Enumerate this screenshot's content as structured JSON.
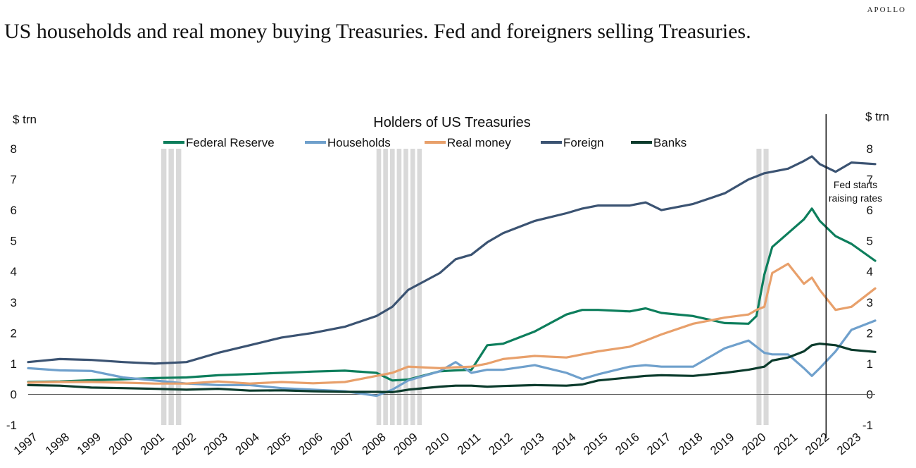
{
  "brand": "APOLLO",
  "headline": "US households and real money buying Treasuries. Fed and foreigners selling Treasuries.",
  "colors": {
    "federal_reserve": "#0d7e5c",
    "households": "#6fa0cc",
    "real_money": "#e8a06b",
    "foreign": "#3b5372",
    "banks": "#0b3b2c",
    "recession": "#d9d9d9"
  },
  "chart_data": {
    "type": "line",
    "title": "Holders of US Treasuries",
    "ylabel_left": "$ trn",
    "ylabel_right": "$ trn",
    "ylim": [
      -1,
      8
    ],
    "yticks": [
      -1,
      0,
      1,
      2,
      3,
      4,
      5,
      6,
      7,
      8
    ],
    "xlim": [
      1997,
      2023.75
    ],
    "xticks": [
      "1997",
      "1998",
      "1999",
      "2000",
      "2001",
      "2002",
      "2003",
      "2004",
      "2005",
      "2006",
      "2007",
      "2008",
      "2009",
      "2010",
      "2011",
      "2012",
      "2013",
      "2014",
      "2015",
      "2016",
      "2017",
      "2018",
      "2019",
      "2020",
      "2021",
      "2022",
      "2023"
    ],
    "grid": false,
    "legend": "top",
    "recessions": [
      [
        2001.2,
        2001.9
      ],
      [
        2008.0,
        2009.5
      ],
      [
        2020.0,
        2020.45
      ]
    ],
    "vline": {
      "x": 2022.2,
      "label_line1": "Fed starts",
      "label_line2": "raising rates"
    },
    "x": [
      1997,
      1998,
      1999,
      2000,
      2001,
      2002,
      2003,
      2004,
      2005,
      2006,
      2007,
      2008,
      2008.5,
      2009,
      2010,
      2010.5,
      2011,
      2011.5,
      2012,
      2013,
      2014,
      2014.5,
      2015,
      2016,
      2016.5,
      2017,
      2018,
      2019,
      2019.75,
      2020,
      2020.25,
      2020.5,
      2021,
      2021.5,
      2021.75,
      2022,
      2022.5,
      2023,
      2023.75
    ],
    "series": [
      {
        "name": "Federal Reserve",
        "color_key": "federal_reserve",
        "values": [
          0.4,
          0.42,
          0.46,
          0.49,
          0.53,
          0.55,
          0.62,
          0.66,
          0.7,
          0.74,
          0.77,
          0.7,
          0.45,
          0.48,
          0.75,
          0.78,
          0.8,
          1.6,
          1.65,
          2.05,
          2.6,
          2.75,
          2.75,
          2.7,
          2.8,
          2.65,
          2.55,
          2.32,
          2.3,
          2.55,
          3.9,
          4.8,
          5.25,
          5.7,
          6.05,
          5.65,
          5.15,
          4.9,
          4.35
        ]
      },
      {
        "name": "Households",
        "color_key": "households",
        "values": [
          0.85,
          0.78,
          0.76,
          0.55,
          0.45,
          0.35,
          0.3,
          0.3,
          0.2,
          0.15,
          0.1,
          -0.05,
          0.15,
          0.45,
          0.75,
          1.05,
          0.7,
          0.8,
          0.8,
          0.95,
          0.7,
          0.5,
          0.65,
          0.9,
          0.95,
          0.9,
          0.9,
          1.5,
          1.75,
          1.55,
          1.35,
          1.3,
          1.3,
          0.85,
          0.6,
          0.85,
          1.4,
          2.1,
          2.4
        ]
      },
      {
        "name": "Real money",
        "color_key": "real_money",
        "values": [
          0.38,
          0.4,
          0.4,
          0.38,
          0.35,
          0.35,
          0.42,
          0.35,
          0.4,
          0.36,
          0.4,
          0.6,
          0.7,
          0.9,
          0.85,
          0.88,
          0.9,
          1.0,
          1.15,
          1.25,
          1.2,
          1.3,
          1.4,
          1.55,
          1.75,
          1.95,
          2.3,
          2.5,
          2.6,
          2.75,
          2.85,
          3.95,
          4.25,
          3.6,
          3.8,
          3.4,
          2.75,
          2.85,
          3.45
        ]
      },
      {
        "name": "Foreign",
        "color_key": "foreign",
        "values": [
          1.05,
          1.15,
          1.12,
          1.05,
          1.0,
          1.05,
          1.35,
          1.6,
          1.85,
          2.0,
          2.2,
          2.55,
          2.85,
          3.4,
          3.95,
          4.4,
          4.55,
          4.95,
          5.25,
          5.65,
          5.9,
          6.05,
          6.15,
          6.15,
          6.25,
          6.0,
          6.2,
          6.55,
          7.0,
          7.1,
          7.2,
          7.25,
          7.35,
          7.6,
          7.75,
          7.5,
          7.25,
          7.55,
          7.5
        ]
      },
      {
        "name": "Banks",
        "color_key": "banks",
        "values": [
          0.3,
          0.28,
          0.22,
          0.2,
          0.18,
          0.15,
          0.18,
          0.12,
          0.13,
          0.1,
          0.08,
          0.08,
          0.07,
          0.15,
          0.25,
          0.28,
          0.28,
          0.25,
          0.27,
          0.3,
          0.28,
          0.32,
          0.45,
          0.55,
          0.6,
          0.62,
          0.6,
          0.7,
          0.8,
          0.85,
          0.9,
          1.1,
          1.2,
          1.4,
          1.6,
          1.65,
          1.6,
          1.45,
          1.38
        ]
      }
    ]
  }
}
